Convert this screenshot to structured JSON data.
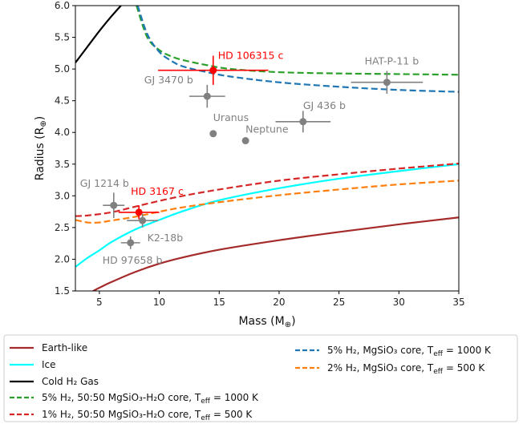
{
  "chart_data": {
    "type": "scatter",
    "title": "",
    "xlabel": "Mass (M",
    "xlabel_sub": "⊕",
    "ylabel": "Radius (R",
    "ylabel_sub": "⊕",
    "xlim": [
      3,
      35
    ],
    "ylim": [
      1.5,
      6.0
    ],
    "xticks": [
      "5",
      "10",
      "15",
      "20",
      "25",
      "30",
      "35"
    ],
    "yticks": [
      "1.5",
      "2.0",
      "2.5",
      "3.0",
      "3.5",
      "4.0",
      "4.5",
      "5.0",
      "5.5",
      "6.0"
    ],
    "grid": false,
    "legend_placement": "below",
    "curves": [
      {
        "name": "Earth-like",
        "color": "#a52a2a",
        "style": "solid",
        "points": [
          [
            4,
            1.45
          ],
          [
            5,
            1.55
          ],
          [
            6,
            1.64
          ],
          [
            8,
            1.8
          ],
          [
            10,
            1.93
          ],
          [
            12,
            2.03
          ],
          [
            15,
            2.15
          ],
          [
            20,
            2.3
          ],
          [
            25,
            2.43
          ],
          [
            30,
            2.55
          ],
          [
            35,
            2.66
          ]
        ]
      },
      {
        "name": "Ice",
        "color": "#00ffff",
        "style": "solid",
        "points": [
          [
            3,
            1.88
          ],
          [
            4,
            2.02
          ],
          [
            5,
            2.14
          ],
          [
            6,
            2.27
          ],
          [
            8,
            2.47
          ],
          [
            10,
            2.62
          ],
          [
            12,
            2.76
          ],
          [
            15,
            2.93
          ],
          [
            20,
            3.12
          ],
          [
            25,
            3.27
          ],
          [
            30,
            3.39
          ],
          [
            35,
            3.5
          ]
        ]
      },
      {
        "name": "Cold H₂ Gas",
        "color": "#000000",
        "style": "solid",
        "points": [
          [
            3,
            5.1
          ],
          [
            4,
            5.35
          ],
          [
            5,
            5.6
          ],
          [
            6,
            5.83
          ],
          [
            6.8,
            6.0
          ]
        ]
      },
      {
        "name": "5% H₂, 50:50 MgSiO₃-H₂O core, T_eff = 1000 K",
        "color": "#2ca02c",
        "style": "dashed",
        "points": [
          [
            8.1,
            6.0
          ],
          [
            9,
            5.5
          ],
          [
            10,
            5.3
          ],
          [
            11,
            5.2
          ],
          [
            12,
            5.14
          ],
          [
            14,
            5.06
          ],
          [
            16,
            5.0
          ],
          [
            20,
            4.95
          ],
          [
            25,
            4.93
          ],
          [
            30,
            4.92
          ],
          [
            35,
            4.91
          ]
        ]
      },
      {
        "name": "1% H₂, 50:50 MgSiO₃-H₂O core, T_eff = 500 K",
        "color": "#d62728",
        "style": "dashed",
        "points": [
          [
            3,
            2.68
          ],
          [
            4,
            2.69
          ],
          [
            6,
            2.74
          ],
          [
            8,
            2.83
          ],
          [
            10,
            2.92
          ],
          [
            12,
            3.0
          ],
          [
            15,
            3.1
          ],
          [
            20,
            3.24
          ],
          [
            25,
            3.34
          ],
          [
            30,
            3.43
          ],
          [
            35,
            3.51
          ]
        ]
      },
      {
        "name": "5% H₂, MgSiO₃ core, T_eff = 1000 K",
        "color": "#1f77b4",
        "style": "dashed",
        "points": [
          [
            8.2,
            6.0
          ],
          [
            9,
            5.55
          ],
          [
            10,
            5.27
          ],
          [
            11,
            5.13
          ],
          [
            12,
            5.04
          ],
          [
            14,
            4.95
          ],
          [
            16,
            4.88
          ],
          [
            20,
            4.79
          ],
          [
            25,
            4.72
          ],
          [
            30,
            4.67
          ],
          [
            35,
            4.64
          ]
        ]
      },
      {
        "name": "2% H₂, MgSiO₃ core, T_eff = 500 K",
        "color": "#ff7f0e",
        "style": "dashed",
        "points": [
          [
            3,
            2.62
          ],
          [
            4,
            2.58
          ],
          [
            5,
            2.58
          ],
          [
            6,
            2.61
          ],
          [
            8,
            2.67
          ],
          [
            10,
            2.75
          ],
          [
            12,
            2.82
          ],
          [
            15,
            2.9
          ],
          [
            20,
            3.01
          ],
          [
            25,
            3.1
          ],
          [
            30,
            3.18
          ],
          [
            35,
            3.24
          ]
        ]
      }
    ],
    "planets": [
      {
        "label": "HD 106315 c",
        "color": "#ff0000",
        "x": 14.5,
        "y": 4.98,
        "xerr": 4.6,
        "yerr": 0.23,
        "label_dx": 6,
        "label_dy": -14,
        "anchor": "start"
      },
      {
        "label": "HAT-P-11 b",
        "color": "#808080",
        "x": 29.0,
        "y": 4.79,
        "xerr": 3.0,
        "yerr": 0.18,
        "label_dx": 6,
        "label_dy": -22,
        "anchor": "middle"
      },
      {
        "label": "GJ 3470 b",
        "color": "#808080",
        "x": 14.0,
        "y": 4.57,
        "xerr": 1.5,
        "yerr": 0.18,
        "label_dx": -48,
        "label_dy": -16,
        "anchor": "middle"
      },
      {
        "label": "GJ 436 b",
        "color": "#808080",
        "x": 22.0,
        "y": 4.17,
        "xerr": 2.3,
        "yerr": 0.17,
        "label_dx": 0,
        "label_dy": -16,
        "anchor": "start"
      },
      {
        "label": "Uranus",
        "color": "#808080",
        "x": 14.5,
        "y": 3.98,
        "xerr": 0,
        "yerr": 0,
        "label_dx": 0,
        "label_dy": -16,
        "anchor": "start"
      },
      {
        "label": "Neptune",
        "color": "#808080",
        "x": 17.2,
        "y": 3.87,
        "xerr": 0,
        "yerr": 0,
        "label_dx": 0,
        "label_dy": -10,
        "anchor": "start"
      },
      {
        "label": "GJ 1214 b",
        "color": "#808080",
        "x": 6.2,
        "y": 2.85,
        "xerr": 0.9,
        "yerr": 0.2,
        "label_dx": -42,
        "label_dy": -23,
        "anchor": "start"
      },
      {
        "label": "HD 3167 c",
        "color": "#ff0000",
        "x": 8.3,
        "y": 2.74,
        "xerr": 1.7,
        "yerr": 0.11,
        "label_dx": -10,
        "label_dy": -22,
        "anchor": "start"
      },
      {
        "label": "K2-18b",
        "color": "#808080",
        "x": 8.6,
        "y": 2.61,
        "xerr": 1.3,
        "yerr": 0.11,
        "label_dx": 6,
        "label_dy": 26,
        "anchor": "start"
      },
      {
        "label": "HD 97658 b",
        "color": "#808080",
        "x": 7.6,
        "y": 2.26,
        "xerr": 0.8,
        "yerr": 0.1,
        "label_dx": -35,
        "label_dy": 26,
        "anchor": "start"
      }
    ]
  }
}
